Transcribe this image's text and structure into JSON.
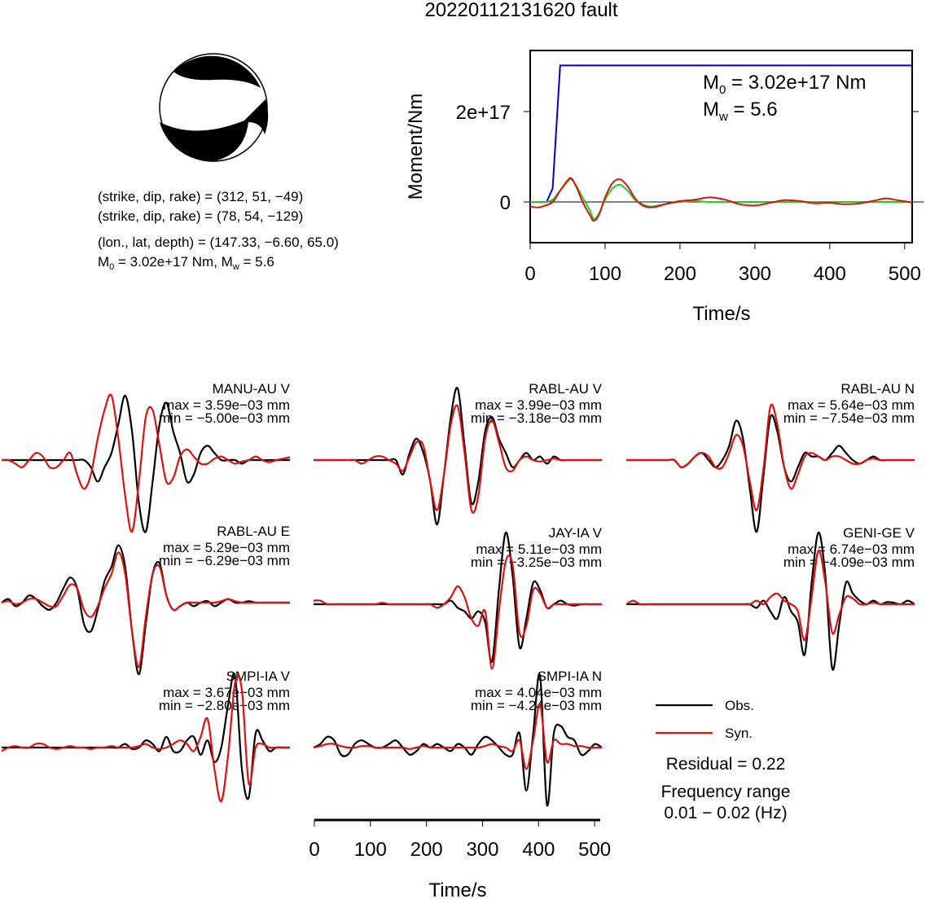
{
  "title": "20220112131620 fault",
  "beachball": {
    "planes": [
      {
        "label": "(strike, dip, rake) = ",
        "values": "(312, 51, −49)"
      },
      {
        "label": "(strike, dip, rake) = ",
        "values": "(78, 54, −129)"
      }
    ],
    "location": {
      "label": "(lon., lat, depth) = ",
      "values": "(147.33, −6.60, 65.0)"
    },
    "moment": {
      "m0_prefix": "M",
      "m0_sub": "0",
      "m0_value": " = 3.02e+17 Nm, M",
      "mw_sub": "w",
      "mw_value": " = 5.6"
    }
  },
  "colors": {
    "obs": "#000000",
    "syn": "#dd1111",
    "moment": "#0000cc",
    "rate_a": "#22cc22",
    "rate_b": "#dd1111"
  },
  "chart_data": [
    {
      "type": "line",
      "xlabel": "Time/s",
      "ylabel": "Moment/Nm",
      "xlim": [
        0,
        510
      ],
      "x_ticks": [
        "0",
        "100",
        "200",
        "300",
        "400",
        "500"
      ],
      "y_ticks": [
        "0",
        "2e+17"
      ],
      "annotation": {
        "m0_prefix": "M",
        "m0_sub": "0",
        "m0_value": " = 3.02e+17 Nm",
        "mw_prefix": "M",
        "mw_sub": "w",
        "mw_value": " = 5.6"
      },
      "series": [
        {
          "color": "blue",
          "x": [
            0,
            22,
            30,
            40,
            510
          ],
          "y": [
            0,
            0,
            3e+16,
            3.02e+17,
            3.02e+17
          ]
        },
        {
          "color": "green",
          "x": [
            0,
            10,
            20,
            30,
            40,
            50,
            55,
            62,
            70,
            80,
            85,
            92,
            100,
            110,
            120,
            130,
            140,
            150,
            160,
            170,
            180,
            200,
            220,
            240,
            260,
            280,
            300,
            320,
            340,
            360,
            400,
            450,
            510
          ],
          "y": [
            0,
            0,
            0,
            5000000000000000.0,
            2.5e+16,
            4.5e+16,
            5e+16,
            3.5e+16,
            1e+16,
            -2e+16,
            -3.8e+16,
            -2.5e+16,
            5000000000000000.0,
            3e+16,
            3.8e+16,
            2.5e+16,
            5000000000000000.0,
            -5000000000000000.0,
            -1e+16,
            -8000000000000000.0,
            -5000000000000000.0,
            0,
            2000000000000000.0,
            0,
            0,
            0,
            0,
            0,
            0,
            0,
            0,
            0,
            0
          ]
        },
        {
          "color": "red",
          "x": [
            0,
            10,
            20,
            30,
            40,
            50,
            55,
            62,
            70,
            80,
            85,
            92,
            100,
            110,
            120,
            130,
            140,
            150,
            160,
            170,
            180,
            200,
            220,
            240,
            260,
            280,
            300,
            320,
            340,
            360,
            380,
            400,
            420,
            440,
            460,
            475,
            490,
            510
          ],
          "y": [
            -1e+16,
            -1.2e+16,
            -8000000000000000.0,
            0,
            2.5e+16,
            4.8e+16,
            5.2e+16,
            3.2e+16,
            0,
            -3e+16,
            -4.2e+16,
            -2.8e+16,
            1e+16,
            4.2e+16,
            5e+16,
            3.5e+16,
            8000000000000000.0,
            -8000000000000000.0,
            -1.2e+16,
            -1e+16,
            -5000000000000000.0,
            2000000000000000.0,
            5000000000000000.0,
            1e+16,
            5000000000000000.0,
            -5000000000000000.0,
            -8000000000000000.0,
            -2000000000000000.0,
            4000000000000000.0,
            2000000000000000.0,
            -3000000000000000.0,
            -2000000000000000.0,
            -5000000000000000.0,
            -3000000000000000.0,
            3000000000000000.0,
            8000000000000000.0,
            4000000000000000.0,
            -1000000000000000.0
          ]
        }
      ]
    },
    {
      "type": "line",
      "xlabel": "Time/s",
      "xlim": [
        0,
        510
      ],
      "x_ticks": [
        "0",
        "100",
        "200",
        "300",
        "400",
        "500"
      ],
      "stations": [
        {
          "name": "MANU-AU V",
          "max": "max = 3.59e−03 mm",
          "min": "min = −5.00e−03 mm",
          "obs": [
            0,
            0,
            0,
            0,
            0,
            0,
            0,
            0,
            0,
            0,
            0,
            0,
            0,
            -0.1,
            -0.3,
            -0.1,
            0.1,
            0.5,
            0.9,
            0.4,
            -0.6,
            -1.0,
            -0.3,
            0.5,
            0.8,
            0.4,
            0.1,
            -0.3,
            -0.2,
            0.1,
            0.2,
            0.1,
            0,
            0,
            0,
            -0.05,
            0,
            0,
            0,
            0,
            0,
            0,
            0
          ],
          "syn": [
            0,
            0,
            -0.05,
            -0.1,
            0,
            0.1,
            0.05,
            -0.1,
            -0.1,
            0,
            0.1,
            -0.2,
            -0.4,
            -0.2,
            0.3,
            0.7,
            0.9,
            0.3,
            -0.5,
            -1.0,
            -0.3,
            0.6,
            0.7,
            0.2,
            -0.3,
            -0.25,
            0.05,
            0.15,
            0.05,
            -0.05,
            -0.05,
            0.02,
            0.05,
            0,
            -0.05,
            -0.02,
            0,
            0.05,
            0,
            -0.03,
            0,
            0.02,
            0.04
          ]
        },
        {
          "name": "RABL-AU V",
          "max": "max = 3.99e−03 mm",
          "min": "min = −3.18e−03 mm",
          "obs": [
            0,
            0,
            0,
            0,
            0,
            0,
            0,
            0,
            0,
            0,
            0,
            0,
            0,
            -0.2,
            0.1,
            0.3,
            0.1,
            -0.3,
            -0.9,
            -0.2,
            0.6,
            1.0,
            0.2,
            -0.6,
            -0.3,
            0.4,
            0.6,
            0.3,
            0.1,
            -0.1,
            0,
            0.1,
            0,
            0.05,
            -0.05,
            0.05,
            0,
            0,
            0,
            0,
            0,
            0,
            0
          ],
          "syn": [
            0,
            0,
            0,
            0,
            0,
            0,
            0,
            -0.05,
            0,
            0.05,
            0.05,
            0,
            -0.05,
            -0.15,
            0.05,
            0.25,
            0.2,
            -0.3,
            -0.7,
            -0.2,
            0.5,
            0.75,
            0.1,
            -0.7,
            -0.5,
            0.3,
            0.55,
            0.25,
            -0.1,
            -0.15,
            0,
            0.05,
            0,
            -0.02,
            0,
            0.02,
            0,
            0,
            0,
            0,
            0,
            0,
            0
          ]
        },
        {
          "name": "RABL-AU N",
          "max": "max = 5.64e−03 mm",
          "min": "min = −7.54e−03 mm",
          "obs": [
            0,
            0,
            0,
            0,
            0,
            0,
            0,
            0,
            -0.1,
            -0.05,
            0.05,
            0.1,
            0,
            -0.1,
            0,
            0.2,
            0.55,
            0.3,
            -0.4,
            -1.0,
            -0.2,
            0.6,
            0.4,
            -0.1,
            -0.3,
            -0.1,
            0.1,
            0.05,
            0.05,
            0.0,
            0.1,
            0.2,
            0.1,
            0,
            -0.05,
            0,
            0.05,
            0,
            0,
            0,
            0,
            0,
            0
          ],
          "syn": [
            0,
            0,
            0,
            0,
            0,
            0,
            0,
            0,
            -0.1,
            -0.05,
            0.05,
            0.1,
            0.05,
            -0.1,
            -0.1,
            0.1,
            0.35,
            0.2,
            -0.3,
            -0.7,
            -0.1,
            0.75,
            0.5,
            -0.1,
            -0.4,
            -0.2,
            0.05,
            0.1,
            0.05,
            0.0,
            0.05,
            0.05,
            0,
            -0.05,
            -0.05,
            0,
            0.02,
            0,
            0,
            0,
            0,
            0,
            0
          ]
        },
        {
          "name": "RABL-AU E",
          "max": "max = 5.29e−03 mm",
          "min": "min = −6.29e−03 mm",
          "obs": [
            0,
            0.05,
            -0.05,
            0,
            0.1,
            0.05,
            -0.05,
            -0.1,
            0,
            0.2,
            0.35,
            0.2,
            -0.3,
            -0.4,
            -0.1,
            0.3,
            0.5,
            0.8,
            0.5,
            -0.4,
            -1.0,
            -0.3,
            0.4,
            0.55,
            0.1,
            -0.1,
            -0.05,
            0,
            -0.05,
            0,
            0.02,
            -0.05,
            0,
            0.05,
            0,
            0,
            0.02,
            0,
            0,
            0,
            0,
            0,
            0
          ],
          "syn": [
            0,
            0.02,
            -0.02,
            0,
            0.05,
            0.05,
            0,
            -0.05,
            -0.05,
            0.1,
            0.25,
            0.2,
            -0.1,
            -0.2,
            -0.05,
            0.2,
            0.4,
            0.7,
            0.4,
            -0.4,
            -0.9,
            -0.2,
            0.4,
            0.5,
            0.1,
            -0.1,
            -0.05,
            0,
            0,
            0,
            0,
            0,
            0.02,
            0.05,
            0.02,
            0,
            0,
            0,
            0,
            0,
            0,
            0,
            0
          ]
        },
        {
          "name": "JAY-IA V",
          "max": "max = 5.11e−03 mm",
          "min": "min = −3.25e−03 mm",
          "obs": [
            0,
            0,
            0,
            0,
            0,
            0,
            0,
            0,
            0,
            0,
            0,
            0,
            0,
            0,
            0,
            0,
            0,
            0,
            0,
            0,
            0.05,
            -0.05,
            -0.1,
            -0.2,
            -0.1,
            -0.25,
            -0.8,
            0.2,
            1.0,
            0.4,
            -0.6,
            -0.2,
            0.3,
            0.2,
            -0.05,
            0,
            0.05,
            0,
            -0.02,
            0,
            0,
            0,
            0
          ],
          "syn": [
            0.05,
            0.05,
            0,
            0,
            0,
            0,
            0,
            0,
            0,
            0,
            0.02,
            0,
            0,
            0,
            0,
            0,
            0,
            0,
            -0.05,
            0,
            0.1,
            0.25,
            0.1,
            -0.2,
            -0.3,
            -0.1,
            -0.9,
            -0.1,
            0.6,
            0.55,
            -0.4,
            -0.3,
            0.2,
            0.15,
            -0.05,
            0,
            0,
            0,
            0,
            0,
            0,
            0,
            0
          ]
        },
        {
          "name": "GENI-GE V",
          "max": "max = 6.74e−03 mm",
          "min": "min = −4.09e−03 mm",
          "obs": [
            0,
            0,
            0,
            0,
            0,
            0,
            0,
            0,
            0,
            0,
            0,
            0,
            0,
            0,
            0,
            0,
            0,
            0,
            0,
            -0.05,
            0.05,
            -0.1,
            -0.2,
            0.1,
            -0.1,
            -0.25,
            -0.7,
            0.3,
            1.0,
            0.4,
            -0.9,
            -0.3,
            0.3,
            0.15,
            0.05,
            0,
            0.05,
            0,
            0.03,
            0.02,
            0,
            0.05,
            0
          ],
          "syn": [
            0,
            0.05,
            0,
            0,
            0,
            0,
            0,
            0,
            0,
            0,
            0,
            0,
            0,
            0,
            0,
            0,
            0,
            0,
            0,
            0.05,
            0,
            0.1,
            0.15,
            0.05,
            0,
            -0.1,
            -0.5,
            0.1,
            0.75,
            0.3,
            -0.4,
            -0.15,
            0.1,
            0.08,
            0,
            0,
            0.02,
            0,
            0,
            0,
            0,
            0,
            0
          ]
        },
        {
          "name": "SMPI-IA V",
          "max": "max = 3.67e−03 mm",
          "min": "min = −2.80e−03 mm",
          "obs": [
            0,
            0,
            0,
            0,
            0,
            0,
            0,
            0,
            0,
            0,
            0,
            0,
            0,
            0,
            0,
            0,
            0,
            0,
            0.05,
            -0.02,
            0,
            0.1,
            0.05,
            -0.05,
            0.15,
            -0.05,
            -0.05,
            0.1,
            0.15,
            -0.1,
            0.1,
            -0.2,
            0.0,
            0.6,
            1.0,
            -0.3,
            -0.7,
            0.2,
            0.1,
            -0.05,
            0,
            0,
            0
          ],
          "syn": [
            -0.05,
            0,
            0.02,
            0,
            0,
            0.05,
            0.05,
            0,
            -0.02,
            0,
            0.02,
            0,
            0,
            -0.02,
            0,
            0,
            0.02,
            0,
            0,
            0,
            0.02,
            0.05,
            0,
            -0.02,
            0,
            0.05,
            0.1,
            0.05,
            -0.05,
            0.15,
            0.4,
            -0.3,
            -0.75,
            -0.1,
            0.9,
            0.8,
            -0.5,
            0.0,
            0.05,
            0,
            0,
            0,
            0
          ]
        },
        {
          "name": "SMPI-IA N",
          "max": "max = 4.04e−03 mm",
          "min": "min = −4.24e−03 mm",
          "obs": [
            0,
            0.05,
            0.15,
            0.1,
            -0.1,
            -0.1,
            0.05,
            0.1,
            0.05,
            0,
            0,
            0.05,
            0.1,
            0,
            -0.1,
            -0.05,
            0.05,
            0,
            0.05,
            0,
            -0.05,
            0.05,
            0,
            -0.1,
            0.05,
            0.15,
            0.1,
            0,
            -0.1,
            -0.1,
            0.2,
            -0.6,
            0.2,
            1.0,
            -0.8,
            0.2,
            0.3,
            0.15,
            0.1,
            -0.1,
            -0.05,
            0.05,
            0
          ],
          "syn": [
            0,
            0.02,
            0.05,
            0.05,
            0.02,
            0,
            0,
            0.02,
            0.02,
            0,
            0,
            0,
            0,
            0,
            -0.02,
            0,
            0.02,
            0,
            0,
            0,
            0,
            0,
            0,
            0,
            0,
            0.02,
            0.05,
            0.02,
            0,
            -0.05,
            0.1,
            -0.3,
            0.1,
            0.6,
            -0.2,
            0.1,
            0.05,
            0.05,
            0.02,
            0.02,
            0,
            0,
            0
          ]
        }
      ]
    }
  ],
  "legend": {
    "obs_label": "Obs.",
    "syn_label": "Syn."
  },
  "residual": "Residual = 0.22",
  "frequency": {
    "label": "Frequency range",
    "range": "0.01 − 0.02 (Hz)"
  }
}
